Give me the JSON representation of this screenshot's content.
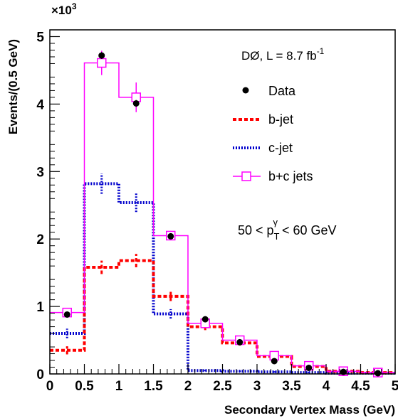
{
  "chart_data": {
    "type": "bar",
    "xlabel": "Secondary Vertex Mass (GeV)",
    "ylabel": "Events/(0.5 GeV)",
    "y_multiplier": "×10",
    "y_multiplier_exp": "3",
    "xlim": [
      0,
      5
    ],
    "ylim": [
      0,
      5.1
    ],
    "x_ticks": [
      "0",
      "0.5",
      "1",
      "1.5",
      "2",
      "2.5",
      "3",
      "3.5",
      "4",
      "4.5",
      "5"
    ],
    "y_ticks": [
      "0",
      "1",
      "2",
      "3",
      "4",
      "5"
    ],
    "bin_edges": [
      0,
      0.5,
      1.0,
      1.5,
      2.0,
      2.5,
      3.0,
      3.5,
      4.0,
      4.5,
      5.0
    ],
    "experiment_label": {
      "prefix": "DØ, L = 8.7 fb",
      "sup": "-1"
    },
    "pt_range_label": {
      "left": "50 < p",
      "sub": "T",
      "sup": "γ",
      "right": "< 60 GeV"
    },
    "series": [
      {
        "name": "Data",
        "style": "points",
        "color": "#000000",
        "values": [
          0.88,
          4.72,
          4.01,
          2.04,
          0.81,
          0.47,
          0.19,
          0.09,
          0.03,
          0.01
        ],
        "errors": [
          0.04,
          0.05,
          0.05,
          0.04,
          0.03,
          0.02,
          0.02,
          0.01,
          0.01,
          0.01
        ]
      },
      {
        "name": "b-jet",
        "style": "dashed-hist",
        "color": "#ff0000",
        "values": [
          0.35,
          1.58,
          1.68,
          1.15,
          0.7,
          0.46,
          0.26,
          0.11,
          0.04,
          0.02
        ],
        "errors": [
          0.06,
          0.1,
          0.1,
          0.07,
          0.05,
          0.04,
          0.03,
          0.02,
          0.01,
          0.01
        ]
      },
      {
        "name": "c-jet",
        "style": "dotted-hist",
        "color": "#0000cc",
        "values": [
          0.6,
          2.82,
          2.54,
          0.89,
          0.05,
          0.04,
          0.03,
          0.02,
          0.01,
          0.01
        ],
        "errors": [
          0.07,
          0.15,
          0.14,
          0.07,
          0.01,
          0.01,
          0.01,
          0.01,
          0.01,
          0.01
        ]
      },
      {
        "name": "b+c jets",
        "style": "solid-hist-box",
        "color": "#ff00ff",
        "values": [
          0.91,
          4.61,
          4.1,
          2.05,
          0.75,
          0.5,
          0.27,
          0.12,
          0.04,
          0.02
        ],
        "errors": [
          0.06,
          0.18,
          0.22,
          0.07,
          0.06,
          0.04,
          0.04,
          0.02,
          0.01,
          0.01
        ]
      }
    ],
    "legend_placement": "upper-right",
    "grid": false
  }
}
